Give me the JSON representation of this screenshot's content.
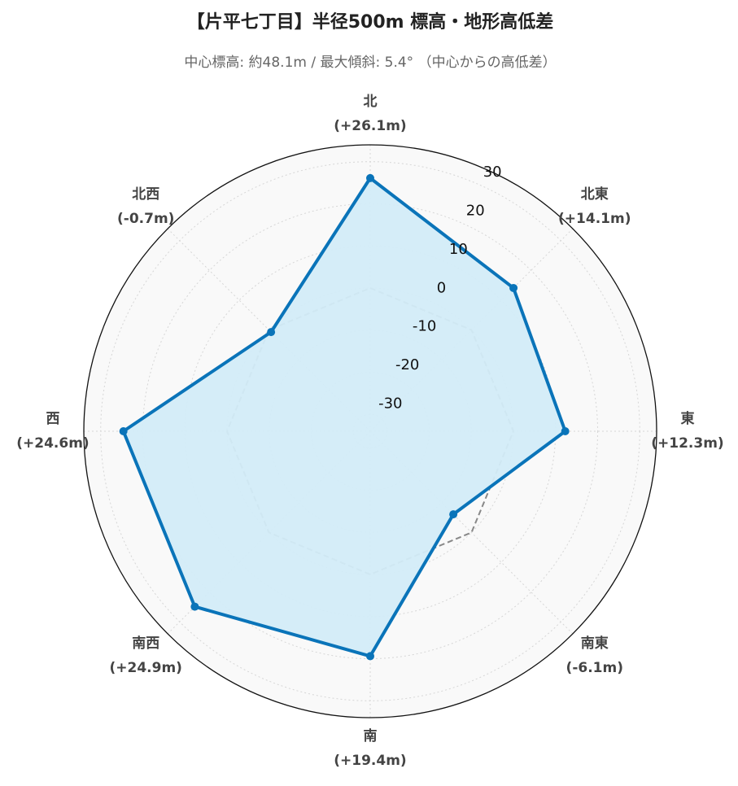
{
  "chart_data": {
    "type": "radar",
    "title": "【片平七丁目】半径500m 標高・地形高低差",
    "subtitle": "中心標高: 約48.1m / 最大傾斜: 5.4° （中心からの高低差）",
    "categories": [
      "北",
      "北東",
      "東",
      "南東",
      "南",
      "南西",
      "西",
      "北西"
    ],
    "values": [
      26.1,
      14.1,
      12.3,
      -6.1,
      19.4,
      24.9,
      24.6,
      -0.7
    ],
    "value_labels": [
      "(+26.1m)",
      "(+14.1m)",
      "(+12.3m)",
      "(-6.1m)",
      "(+19.4m)",
      "(+24.9m)",
      "(+24.6m)",
      "(-0.7m)"
    ],
    "color": "#0a74b9",
    "fill_color": "#d3ecf8",
    "reference_line": 0,
    "ylim": [
      -34,
      34
    ],
    "yticks": [
      -30,
      -20,
      -10,
      0,
      10,
      20,
      30
    ],
    "grid": true
  }
}
